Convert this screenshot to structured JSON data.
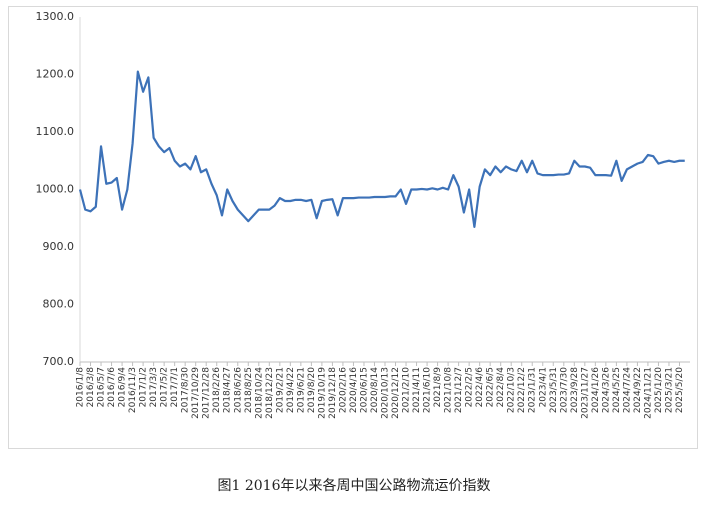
{
  "chart_data": {
    "type": "line",
    "caption": "图1 2016年以来各周中国公路物流运价指数",
    "categories": [
      "2016/1/8",
      null,
      "2016/3/8",
      null,
      "2016/5/7",
      null,
      "2016/7/6",
      null,
      "2016/9/4",
      null,
      "2016/11/3",
      null,
      "2017/1/2",
      null,
      "2017/3/3",
      null,
      "2017/5/2",
      null,
      "2017/7/1",
      null,
      "2017/8/30",
      null,
      "2017/10/29",
      null,
      "2017/12/28",
      null,
      "2018/2/26",
      null,
      "2018/4/27",
      null,
      "2018/6/26",
      null,
      "2018/8/25",
      null,
      "2018/10/24",
      null,
      "2018/12/23",
      null,
      "2019/2/21",
      null,
      "2019/4/22",
      null,
      "2019/6/21",
      null,
      "2019/8/20",
      null,
      "2019/10/19",
      null,
      "2019/12/18",
      null,
      "2020/2/16",
      null,
      "2020/4/16",
      null,
      "2020/6/15",
      null,
      "2020/8/14",
      null,
      "2020/10/13",
      null,
      "2020/12/12",
      null,
      "2021/2/10",
      null,
      "2021/4/11",
      null,
      "2021/6/10",
      null,
      "2021/8/9",
      null,
      "2021/10/8",
      null,
      "2021/12/7",
      null,
      "2022/2/5",
      null,
      "2022/4/6",
      null,
      "2022/6/5",
      null,
      "2022/8/4",
      null,
      "2022/10/3",
      null,
      "2022/12/2",
      null,
      "2023/1/31",
      null,
      "2023/4/1",
      null,
      "2023/5/31",
      null,
      "2023/7/30",
      null,
      "2023/9/28",
      null,
      "2023/11/27",
      null,
      "2024/1/26",
      null,
      "2024/3/26",
      null,
      "2024/5/25",
      null,
      "2024/7/24",
      null,
      "2024/9/22",
      null,
      "2024/11/21",
      null,
      "2025/1/20",
      null,
      "2025/3/21",
      null,
      "2025/5/20",
      null
    ],
    "series": [
      {
        "color": "#3d72b8",
        "values": [
          1000,
          965,
          962,
          970,
          1075,
          1010,
          1012,
          1020,
          965,
          1000,
          1080,
          1205,
          1170,
          1195,
          1090,
          1075,
          1065,
          1072,
          1050,
          1040,
          1045,
          1035,
          1058,
          1030,
          1035,
          1010,
          990,
          955,
          1000,
          980,
          965,
          955,
          945,
          955,
          965,
          965,
          965,
          972,
          985,
          980,
          980,
          982,
          982,
          980,
          982,
          950,
          980,
          982,
          983,
          955,
          985,
          985,
          985,
          986,
          986,
          986,
          987,
          987,
          987,
          988,
          988,
          1000,
          975,
          1000,
          1000,
          1001,
          1000,
          1002,
          1000,
          1003,
          1000,
          1025,
          1005,
          960,
          1000,
          935,
          1005,
          1035,
          1025,
          1040,
          1030,
          1040,
          1035,
          1032,
          1050,
          1030,
          1050,
          1028,
          1025,
          1025,
          1025,
          1026,
          1026,
          1028,
          1050,
          1040,
          1040,
          1038,
          1025,
          1025,
          1025,
          1024,
          1050,
          1015,
          1035,
          1040,
          1045,
          1048,
          1060,
          1058,
          1045,
          1048,
          1050,
          1048,
          1050,
          1050
        ]
      }
    ],
    "ylim": [
      700,
      1300
    ],
    "yticks": [
      {
        "value": 700,
        "label": "700.0"
      },
      {
        "value": 800,
        "label": "800.0"
      },
      {
        "value": 900,
        "label": "900.0"
      },
      {
        "value": 1000,
        "label": "1000.0"
      },
      {
        "value": 1100,
        "label": "1100.0"
      },
      {
        "value": 1200,
        "label": "1200.0"
      },
      {
        "value": 1300,
        "label": "1300.0"
      }
    ],
    "grid": false
  }
}
